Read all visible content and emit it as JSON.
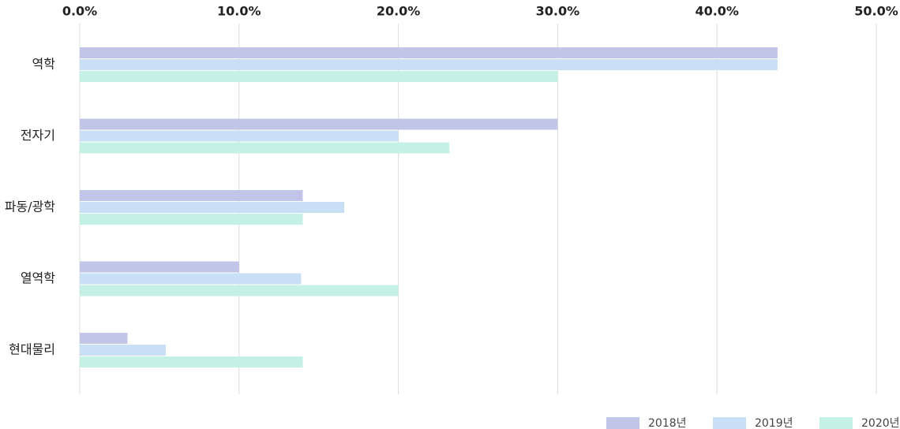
{
  "chart_data": {
    "type": "bar",
    "orientation": "horizontal",
    "title": "",
    "xlabel": "",
    "ylabel": "",
    "categories": [
      "역학",
      "전자기",
      "파동/광학",
      "열역학",
      "현대물리"
    ],
    "series": [
      {
        "name": "2018년",
        "color": "#c1c6e9",
        "values": [
          43.8,
          30.0,
          14.0,
          10.0,
          3.0
        ]
      },
      {
        "name": "2019년",
        "color": "#c8dff5",
        "values": [
          43.8,
          20.0,
          16.6,
          13.9,
          5.4
        ]
      },
      {
        "name": "2020년",
        "color": "#c5f0e6",
        "values": [
          30.0,
          23.2,
          14.0,
          20.0,
          14.0
        ]
      }
    ],
    "xlim": [
      0,
      50
    ],
    "x_ticks": [
      "0.0%",
      "10.0%",
      "20.0%",
      "30.0%",
      "40.0%",
      "50.0%"
    ],
    "x_axis_position": "top",
    "grid": true,
    "legend_position": "bottom-right"
  }
}
